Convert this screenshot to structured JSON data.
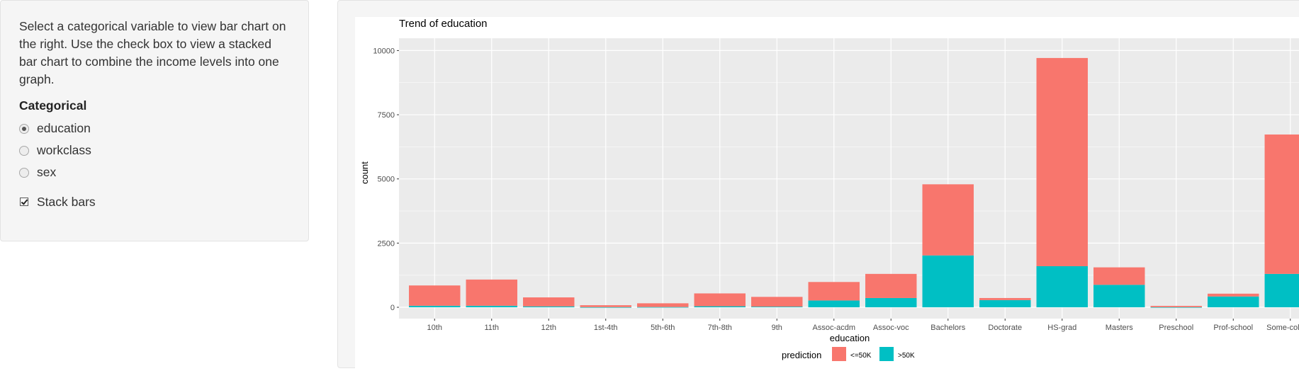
{
  "sidebar": {
    "help_text": "Select a categorical variable to view bar chart on the right. Use the check box to view a stacked bar chart to combine the income levels into one graph.",
    "categorical_label": "Categorical",
    "options": [
      {
        "label": "education",
        "selected": true
      },
      {
        "label": "workclass",
        "selected": false
      },
      {
        "label": "sex",
        "selected": false
      }
    ],
    "stack_bars": {
      "label": "Stack bars",
      "checked": true
    }
  },
  "chart_data": {
    "type": "bar",
    "stacked": true,
    "title": "Trend of  education",
    "xlabel": "education",
    "ylabel": "count",
    "ylim": [
      0,
      10000
    ],
    "yticks": [
      0,
      2500,
      5000,
      7500,
      10000
    ],
    "categories": [
      "10th",
      "11th",
      "12th",
      "1st-4th",
      "5th-6th",
      "7th-8th",
      "9th",
      "Assoc-acdm",
      "Assoc-voc",
      "Bachelors",
      "Doctorate",
      "HS-grad",
      "Masters",
      "Preschool",
      "Prof-school",
      "Some-college"
    ],
    "series": [
      {
        "name": ">50K",
        "color": "#00BFC4",
        "values": [
          60,
          60,
          35,
          5,
          10,
          40,
          25,
          265,
          360,
          2020,
          280,
          1600,
          875,
          5,
          420,
          1300
        ]
      },
      {
        "name": "<=50K",
        "color": "#F8766D",
        "values": [
          790,
          1020,
          350,
          75,
          145,
          500,
          380,
          720,
          940,
          2770,
          80,
          8110,
          680,
          50,
          110,
          5430
        ]
      }
    ],
    "legend": {
      "title": "prediction",
      "position": "bottom"
    },
    "grid": true,
    "panel_background": "#EBEBEB"
  }
}
